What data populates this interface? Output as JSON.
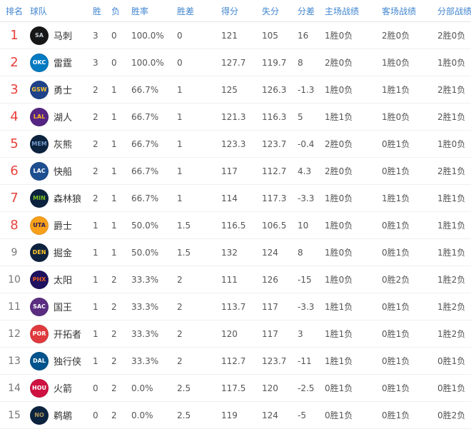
{
  "table": {
    "header_color": "#4186d0",
    "rank_highlight_color": "#e8413c",
    "columns": [
      {
        "key": "rank",
        "label": "排名"
      },
      {
        "key": "team",
        "label": "球队"
      },
      {
        "key": "wins",
        "label": "胜"
      },
      {
        "key": "losses",
        "label": "负"
      },
      {
        "key": "win_pct",
        "label": "胜率"
      },
      {
        "key": "games_behind",
        "label": "胜差"
      },
      {
        "key": "points_for",
        "label": "得分"
      },
      {
        "key": "points_against",
        "label": "失分"
      },
      {
        "key": "point_diff",
        "label": "分差"
      },
      {
        "key": "home_record",
        "label": "主场战绩"
      },
      {
        "key": "away_record",
        "label": "客场战绩"
      },
      {
        "key": "division_record",
        "label": "分部战绩"
      }
    ],
    "rows": [
      {
        "rank": "1",
        "team": "马刺",
        "abbr": "SA",
        "logo": "spurs-logo",
        "logo_bg": "#171717",
        "logo_fg": "#c4ced4",
        "rank_highlight": true,
        "wins": "3",
        "losses": "0",
        "win_pct": "100.0%",
        "games_behind": "0",
        "points_for": "121",
        "points_against": "105",
        "point_diff": "16",
        "home_record": "1胜0负",
        "away_record": "2胜0负",
        "division_record": "2胜0负"
      },
      {
        "rank": "2",
        "team": "雷霆",
        "abbr": "OKC",
        "logo": "thunder-logo",
        "logo_bg": "#007ac1",
        "logo_fg": "#ffffff",
        "rank_highlight": true,
        "wins": "3",
        "losses": "0",
        "win_pct": "100.0%",
        "games_behind": "0",
        "points_for": "127.7",
        "points_against": "119.7",
        "point_diff": "8",
        "home_record": "2胜0负",
        "away_record": "1胜0负",
        "division_record": "1胜0负"
      },
      {
        "rank": "3",
        "team": "勇士",
        "abbr": "GSW",
        "logo": "warriors-logo",
        "logo_bg": "#1d428a",
        "logo_fg": "#ffc72c",
        "rank_highlight": true,
        "wins": "2",
        "losses": "1",
        "win_pct": "66.7%",
        "games_behind": "1",
        "points_for": "125",
        "points_against": "126.3",
        "point_diff": "-1.3",
        "home_record": "1胜0负",
        "away_record": "1胜1负",
        "division_record": "2胜1负"
      },
      {
        "rank": "4",
        "team": "湖人",
        "abbr": "LAL",
        "logo": "lakers-logo",
        "logo_bg": "#552583",
        "logo_fg": "#fdb927",
        "rank_highlight": true,
        "wins": "2",
        "losses": "1",
        "win_pct": "66.7%",
        "games_behind": "1",
        "points_for": "121.3",
        "points_against": "116.3",
        "point_diff": "5",
        "home_record": "1胜1负",
        "away_record": "1胜0负",
        "division_record": "2胜1负"
      },
      {
        "rank": "5",
        "team": "灰熊",
        "abbr": "MEM",
        "logo": "grizzlies-logo",
        "logo_bg": "#0c2340",
        "logo_fg": "#7399c6",
        "rank_highlight": true,
        "wins": "2",
        "losses": "1",
        "win_pct": "66.7%",
        "games_behind": "1",
        "points_for": "123.3",
        "points_against": "123.7",
        "point_diff": "-0.4",
        "home_record": "2胜0负",
        "away_record": "0胜1负",
        "division_record": "1胜0负"
      },
      {
        "rank": "6",
        "team": "快船",
        "abbr": "LAC",
        "logo": "clippers-logo",
        "logo_bg": "#1d4f91",
        "logo_fg": "#ffffff",
        "rank_highlight": true,
        "wins": "2",
        "losses": "1",
        "win_pct": "66.7%",
        "games_behind": "1",
        "points_for": "117",
        "points_against": "112.7",
        "point_diff": "4.3",
        "home_record": "2胜0负",
        "away_record": "0胜1负",
        "division_record": "2胜1负"
      },
      {
        "rank": "7",
        "team": "森林狼",
        "abbr": "MIN",
        "logo": "timberwolves-logo",
        "logo_bg": "#0c2340",
        "logo_fg": "#78be20",
        "rank_highlight": true,
        "wins": "2",
        "losses": "1",
        "win_pct": "66.7%",
        "games_behind": "1",
        "points_for": "114",
        "points_against": "117.3",
        "point_diff": "-3.3",
        "home_record": "1胜0负",
        "away_record": "1胜1负",
        "division_record": "1胜1负"
      },
      {
        "rank": "8",
        "team": "爵士",
        "abbr": "UTA",
        "logo": "jazz-logo",
        "logo_bg": "#f9a01b",
        "logo_fg": "#2b1b4d",
        "rank_highlight": true,
        "wins": "1",
        "losses": "1",
        "win_pct": "50.0%",
        "games_behind": "1.5",
        "points_for": "116.5",
        "points_against": "106.5",
        "point_diff": "10",
        "home_record": "1胜0负",
        "away_record": "0胜1负",
        "division_record": "1胜1负"
      },
      {
        "rank": "9",
        "team": "掘金",
        "abbr": "DEN",
        "logo": "nuggets-logo",
        "logo_bg": "#0e2240",
        "logo_fg": "#fec524",
        "rank_highlight": false,
        "wins": "1",
        "losses": "1",
        "win_pct": "50.0%",
        "games_behind": "1.5",
        "points_for": "132",
        "points_against": "124",
        "point_diff": "8",
        "home_record": "1胜0负",
        "away_record": "0胜1负",
        "division_record": "1胜1负"
      },
      {
        "rank": "10",
        "team": "太阳",
        "abbr": "PHX",
        "logo": "suns-logo",
        "logo_bg": "#1d1160",
        "logo_fg": "#e56020",
        "rank_highlight": false,
        "wins": "1",
        "losses": "2",
        "win_pct": "33.3%",
        "games_behind": "2",
        "points_for": "111",
        "points_against": "126",
        "point_diff": "-15",
        "home_record": "1胜0负",
        "away_record": "0胜2负",
        "division_record": "1胜2负"
      },
      {
        "rank": "11",
        "team": "国王",
        "abbr": "SAC",
        "logo": "kings-logo",
        "logo_bg": "#5a2d81",
        "logo_fg": "#ffffff",
        "rank_highlight": false,
        "wins": "1",
        "losses": "2",
        "win_pct": "33.3%",
        "games_behind": "2",
        "points_for": "113.7",
        "points_against": "117",
        "point_diff": "-3.3",
        "home_record": "1胜1负",
        "away_record": "0胜1负",
        "division_record": "1胜2负"
      },
      {
        "rank": "12",
        "team": "开拓者",
        "abbr": "POR",
        "logo": "trail-blazers-logo",
        "logo_bg": "#e03a3e",
        "logo_fg": "#ffffff",
        "rank_highlight": false,
        "wins": "1",
        "losses": "2",
        "win_pct": "33.3%",
        "games_behind": "2",
        "points_for": "120",
        "points_against": "117",
        "point_diff": "3",
        "home_record": "1胜1负",
        "away_record": "0胜1负",
        "division_record": "1胜2负"
      },
      {
        "rank": "13",
        "team": "独行侠",
        "abbr": "DAL",
        "logo": "mavericks-logo",
        "logo_bg": "#00538c",
        "logo_fg": "#ffffff",
        "rank_highlight": false,
        "wins": "1",
        "losses": "2",
        "win_pct": "33.3%",
        "games_behind": "2",
        "points_for": "112.7",
        "points_against": "123.7",
        "point_diff": "-11",
        "home_record": "1胜1负",
        "away_record": "0胜1负",
        "division_record": "0胜1负"
      },
      {
        "rank": "14",
        "team": "火箭",
        "abbr": "HOU",
        "logo": "rockets-logo",
        "logo_bg": "#ce1141",
        "logo_fg": "#ffffff",
        "rank_highlight": false,
        "wins": "0",
        "losses": "2",
        "win_pct": "0.0%",
        "games_behind": "2.5",
        "points_for": "117.5",
        "points_against": "120",
        "point_diff": "-2.5",
        "home_record": "0胜1负",
        "away_record": "0胜1负",
        "division_record": "0胜1负"
      },
      {
        "rank": "15",
        "team": "鹈鹕",
        "abbr": "NO",
        "logo": "pelicans-logo",
        "logo_bg": "#0c2340",
        "logo_fg": "#b4975a",
        "rank_highlight": false,
        "wins": "0",
        "losses": "2",
        "win_pct": "0.0%",
        "games_behind": "2.5",
        "points_for": "119",
        "points_against": "124",
        "point_diff": "-5",
        "home_record": "0胜1负",
        "away_record": "0胜1负",
        "division_record": "0胜2负"
      }
    ]
  }
}
